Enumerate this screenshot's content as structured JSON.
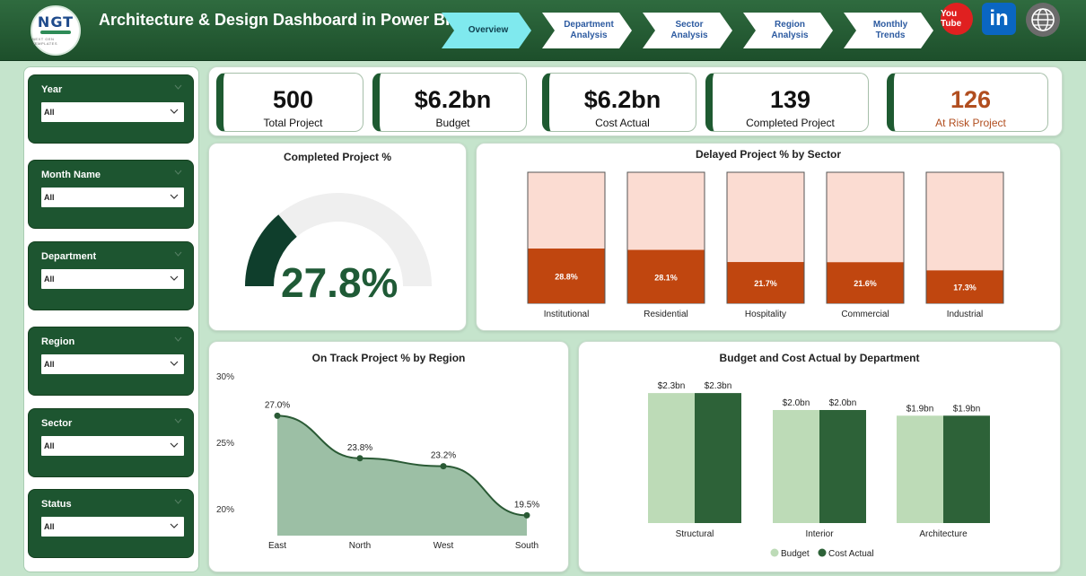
{
  "header": {
    "logo_text": "NGT",
    "logo_subtext": "NEXT GEN TEMPLATES",
    "title": "Architecture & Design Dashboard in Power BI",
    "nav": [
      {
        "label": "Overview",
        "active": true
      },
      {
        "label": "Department Analysis",
        "active": false
      },
      {
        "label": "Sector Analysis",
        "active": false
      },
      {
        "label": "Region Analysis",
        "active": false
      },
      {
        "label": "Monthly Trends",
        "active": false
      }
    ],
    "social": {
      "youtube": "You Tube",
      "linkedin": "in",
      "web": "globe-icon"
    }
  },
  "filters": [
    {
      "label": "Year",
      "value": "All"
    },
    {
      "label": "Month Name",
      "value": "All"
    },
    {
      "label": "Department",
      "value": "All"
    },
    {
      "label": "Region",
      "value": "All"
    },
    {
      "label": "Sector",
      "value": "All"
    },
    {
      "label": "Status",
      "value": "All"
    }
  ],
  "kpis": [
    {
      "value": "500",
      "label": "Total Project"
    },
    {
      "value": "$6.2bn",
      "label": "Budget"
    },
    {
      "value": "$6.2bn",
      "label": "Cost Actual"
    },
    {
      "value": "139",
      "label": "Completed Project"
    },
    {
      "value": "126",
      "label": "At Risk Project"
    }
  ],
  "colors": {
    "dark_green": "#1d5530",
    "gauge_fill": "#0f3e2c",
    "gauge_track": "#efefef",
    "bar_bg": "#fbdcd2",
    "bar_fill": "#c0460f",
    "area_fill": "#9cbfa5",
    "area_line": "#2a5a35",
    "budget": "#bddbb7",
    "cost": "#2d6238",
    "risk": "#b14e1f",
    "nav_active": "#7fe9ee"
  },
  "chart_data": [
    {
      "type": "gauge",
      "title": "Completed Project %",
      "value": 27.8,
      "display": "27.8%",
      "min": 0,
      "max": 100
    },
    {
      "type": "bar",
      "title": "Delayed Project % by Sector",
      "categories": [
        "Institutional",
        "Residential",
        "Hospitality",
        "Commercial",
        "Industrial"
      ],
      "values": [
        28.8,
        28.1,
        21.7,
        21.6,
        17.3
      ],
      "labels": [
        "28.8%",
        "28.1%",
        "21.7%",
        "21.6%",
        "17.3%"
      ],
      "ylim": [
        0,
        100
      ]
    },
    {
      "type": "area",
      "title": "On Track Project % by Region",
      "categories": [
        "East",
        "North",
        "West",
        "South"
      ],
      "values": [
        27.0,
        23.8,
        23.2,
        19.5
      ],
      "labels": [
        "27.0%",
        "23.8%",
        "23.2%",
        "19.5%"
      ],
      "yticks": [
        "30%",
        "25%",
        "20%"
      ],
      "ytick_values": [
        30,
        25,
        20
      ],
      "ylim": [
        18,
        30
      ]
    },
    {
      "type": "bar",
      "title": "Budget and Cost Actual by Department",
      "categories": [
        "Structural",
        "Interior",
        "Architecture"
      ],
      "series": [
        {
          "name": "Budget",
          "values": [
            2.3,
            2.0,
            1.9
          ],
          "labels": [
            "$2.3bn",
            "$2.0bn",
            "$1.9bn"
          ]
        },
        {
          "name": "Cost Actual",
          "values": [
            2.3,
            2.0,
            1.9
          ],
          "labels": [
            "$2.3bn",
            "$2.0bn",
            "$1.9bn"
          ]
        }
      ],
      "legend": "bottom-center"
    }
  ]
}
